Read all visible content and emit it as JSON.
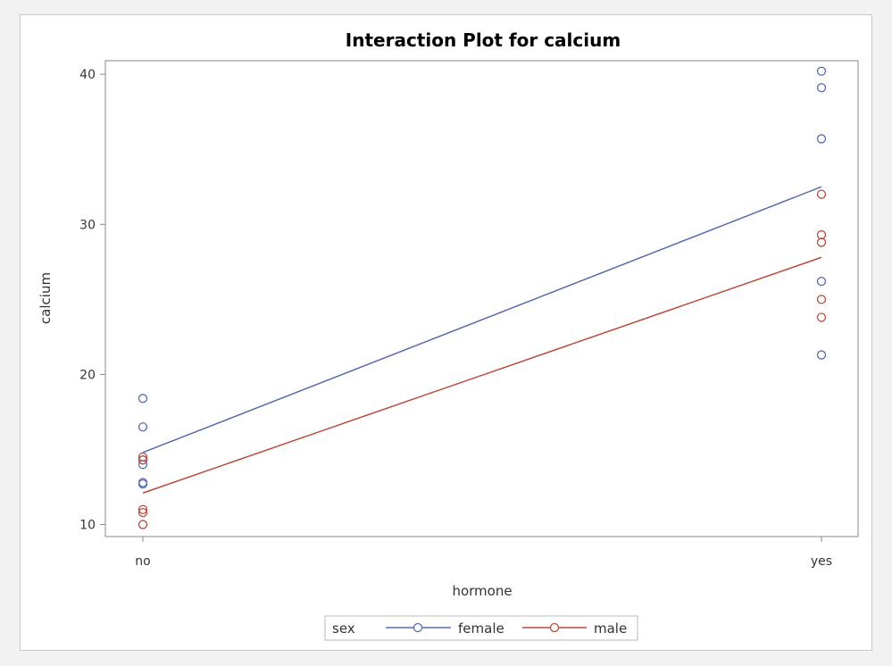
{
  "chart_data": {
    "type": "scatter",
    "title": "Interaction Plot for calcium",
    "xlabel": "hormone",
    "ylabel": "calcium",
    "categories": [
      "no",
      "yes"
    ],
    "ylim": [
      9.2,
      40.9
    ],
    "yticks": [
      10,
      20,
      30,
      40
    ],
    "grid": false,
    "legend": {
      "title": "sex",
      "position": "bottom"
    },
    "series": [
      {
        "name": "female",
        "color": "#5a6bab",
        "points": [
          {
            "x": "no",
            "y": 18.4
          },
          {
            "x": "no",
            "y": 16.5
          },
          {
            "x": "no",
            "y": 14.3
          },
          {
            "x": "no",
            "y": 14.0
          },
          {
            "x": "no",
            "y": 12.8
          },
          {
            "x": "no",
            "y": 12.7
          },
          {
            "x": "yes",
            "y": 40.2
          },
          {
            "x": "yes",
            "y": 39.1
          },
          {
            "x": "yes",
            "y": 35.7
          },
          {
            "x": "yes",
            "y": 26.2
          },
          {
            "x": "yes",
            "y": 21.3
          }
        ],
        "means": [
          14.8,
          32.5
        ]
      },
      {
        "name": "male",
        "color": "#b84a3e",
        "points": [
          {
            "x": "no",
            "y": 14.5
          },
          {
            "x": "no",
            "y": 14.3
          },
          {
            "x": "no",
            "y": 11.0
          },
          {
            "x": "no",
            "y": 10.8
          },
          {
            "x": "no",
            "y": 10.0
          },
          {
            "x": "yes",
            "y": 32.0
          },
          {
            "x": "yes",
            "y": 29.3
          },
          {
            "x": "yes",
            "y": 28.8
          },
          {
            "x": "yes",
            "y": 25.0
          },
          {
            "x": "yes",
            "y": 23.8
          }
        ],
        "means": [
          12.1,
          27.8
        ]
      }
    ]
  }
}
